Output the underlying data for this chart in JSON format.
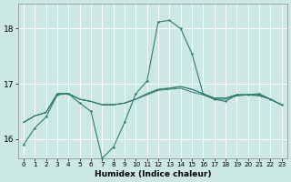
{
  "xlabel": "Humidex (Indice chaleur)",
  "bg_color": "#cce8e4",
  "grid_color": "#ffffff",
  "line_color": "#2e7d6e",
  "xlim": [
    -0.5,
    23.5
  ],
  "ylim": [
    15.65,
    18.45
  ],
  "yticks": [
    16,
    17,
    18
  ],
  "xticks": [
    0,
    1,
    2,
    3,
    4,
    5,
    6,
    7,
    8,
    9,
    10,
    11,
    12,
    13,
    14,
    15,
    16,
    17,
    18,
    19,
    20,
    21,
    22,
    23
  ],
  "line_main": [
    15.9,
    16.2,
    16.4,
    16.8,
    16.82,
    16.65,
    16.5,
    15.65,
    15.85,
    16.3,
    16.82,
    17.05,
    18.12,
    18.15,
    18.0,
    17.55,
    16.82,
    16.72,
    16.68,
    16.8,
    16.8,
    16.82,
    16.72,
    16.62
  ],
  "line_smooth1": [
    16.3,
    16.42,
    16.48,
    16.82,
    16.82,
    16.72,
    16.68,
    16.62,
    16.62,
    16.65,
    16.72,
    16.8,
    16.88,
    16.9,
    16.92,
    16.85,
    16.8,
    16.72,
    16.72,
    16.78,
    16.8,
    16.78,
    16.72,
    16.62
  ],
  "line_smooth2": [
    16.3,
    16.42,
    16.48,
    16.82,
    16.82,
    16.72,
    16.68,
    16.62,
    16.62,
    16.65,
    16.72,
    16.82,
    16.9,
    16.92,
    16.95,
    16.9,
    16.82,
    16.74,
    16.74,
    16.8,
    16.8,
    16.8,
    16.72,
    16.62
  ],
  "line_smooth3": [
    16.3,
    16.42,
    16.48,
    16.82,
    16.82,
    16.72,
    16.68,
    16.62,
    16.62,
    16.65,
    16.72,
    16.82,
    16.9,
    16.92,
    16.95,
    16.9,
    16.82,
    16.74,
    16.74,
    16.8,
    16.8,
    16.8,
    16.72,
    16.62
  ]
}
